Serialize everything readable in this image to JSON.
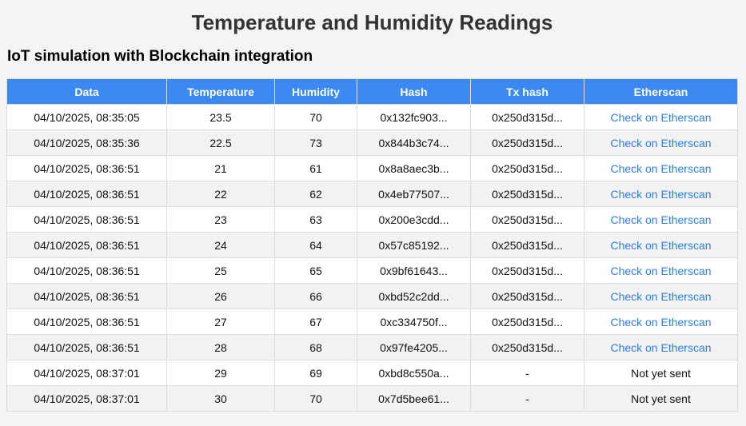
{
  "page": {
    "title": "Temperature and Humidity Readings",
    "subtitle": "IoT simulation with Blockchain integration"
  },
  "table": {
    "headers": [
      "Data",
      "Temperature",
      "Humidity",
      "Hash",
      "Tx hash",
      "Etherscan"
    ],
    "rows": [
      {
        "date": "04/10/2025, 08:35:05",
        "temperature": "23.5",
        "humidity": "70",
        "hash": "0x132fc903...",
        "tx_hash": "0x250d315d...",
        "etherscan": "Check on Etherscan",
        "etherscan_is_link": true
      },
      {
        "date": "04/10/2025, 08:35:36",
        "temperature": "22.5",
        "humidity": "73",
        "hash": "0x844b3c74...",
        "tx_hash": "0x250d315d...",
        "etherscan": "Check on Etherscan",
        "etherscan_is_link": true
      },
      {
        "date": "04/10/2025, 08:36:51",
        "temperature": "21",
        "humidity": "61",
        "hash": "0x8a8aec3b...",
        "tx_hash": "0x250d315d...",
        "etherscan": "Check on Etherscan",
        "etherscan_is_link": true
      },
      {
        "date": "04/10/2025, 08:36:51",
        "temperature": "22",
        "humidity": "62",
        "hash": "0x4eb77507...",
        "tx_hash": "0x250d315d...",
        "etherscan": "Check on Etherscan",
        "etherscan_is_link": true
      },
      {
        "date": "04/10/2025, 08:36:51",
        "temperature": "23",
        "humidity": "63",
        "hash": "0x200e3cdd...",
        "tx_hash": "0x250d315d...",
        "etherscan": "Check on Etherscan",
        "etherscan_is_link": true
      },
      {
        "date": "04/10/2025, 08:36:51",
        "temperature": "24",
        "humidity": "64",
        "hash": "0x57c85192...",
        "tx_hash": "0x250d315d...",
        "etherscan": "Check on Etherscan",
        "etherscan_is_link": true
      },
      {
        "date": "04/10/2025, 08:36:51",
        "temperature": "25",
        "humidity": "65",
        "hash": "0x9bf61643...",
        "tx_hash": "0x250d315d...",
        "etherscan": "Check on Etherscan",
        "etherscan_is_link": true
      },
      {
        "date": "04/10/2025, 08:36:51",
        "temperature": "26",
        "humidity": "66",
        "hash": "0xbd52c2dd...",
        "tx_hash": "0x250d315d...",
        "etherscan": "Check on Etherscan",
        "etherscan_is_link": true
      },
      {
        "date": "04/10/2025, 08:36:51",
        "temperature": "27",
        "humidity": "67",
        "hash": "0xc334750f...",
        "tx_hash": "0x250d315d...",
        "etherscan": "Check on Etherscan",
        "etherscan_is_link": true
      },
      {
        "date": "04/10/2025, 08:36:51",
        "temperature": "28",
        "humidity": "68",
        "hash": "0x97fe4205...",
        "tx_hash": "0x250d315d...",
        "etherscan": "Check on Etherscan",
        "etherscan_is_link": true
      },
      {
        "date": "04/10/2025, 08:37:01",
        "temperature": "29",
        "humidity": "69",
        "hash": "0xbd8c550a...",
        "tx_hash": "-",
        "etherscan": "Not yet sent",
        "etherscan_is_link": false
      },
      {
        "date": "04/10/2025, 08:37:01",
        "temperature": "30",
        "humidity": "70",
        "hash": "0x7d5bee61...",
        "tx_hash": "-",
        "etherscan": "Not yet sent",
        "etherscan_is_link": false
      }
    ]
  },
  "colors": {
    "header_background": "#3b8af4",
    "header_text": "#ffffff",
    "link": "#2f7de1",
    "row_alt": "#f2f2f2",
    "page_background": "#f4f4f4"
  }
}
